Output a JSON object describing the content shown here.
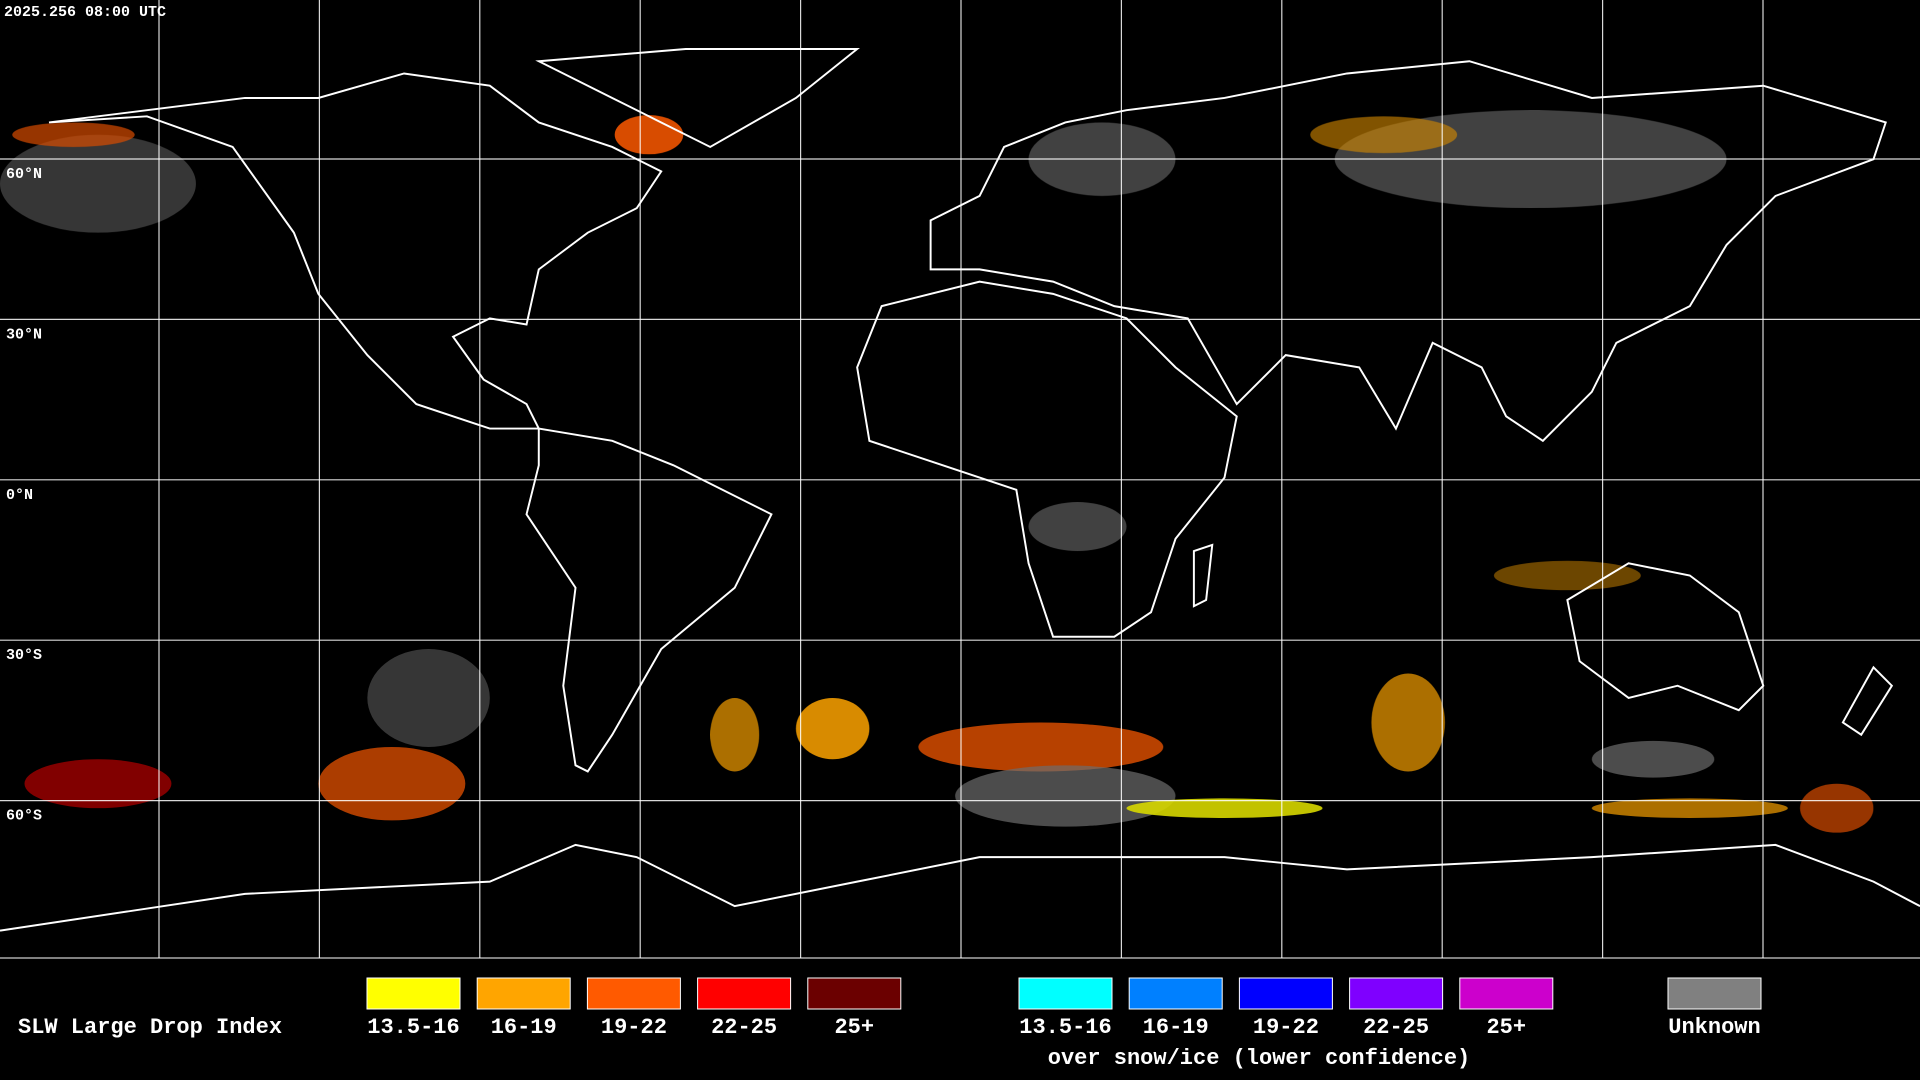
{
  "header": {
    "timestamp": "2025.256 08:00 UTC"
  },
  "map": {
    "latitude_labels": [
      "60°N",
      "30°N",
      "0°N",
      "30°S",
      "60°S"
    ]
  },
  "legend": {
    "title": "SLW Large Drop Index",
    "liquid": [
      {
        "label": "13.5-16",
        "color": "#ffff00"
      },
      {
        "label": "16-19",
        "color": "#ffa500"
      },
      {
        "label": "19-22",
        "color": "#ff5a00"
      },
      {
        "label": "22-25",
        "color": "#ff0000"
      },
      {
        "label": "25+",
        "color": "#6b0000"
      }
    ],
    "snow_ice": {
      "items": [
        {
          "label": "13.5-16",
          "color": "#00ffff"
        },
        {
          "label": "16-19",
          "color": "#0080ff"
        },
        {
          "label": "19-22",
          "color": "#0000ff"
        },
        {
          "label": "22-25",
          "color": "#7f00ff"
        },
        {
          "label": "25+",
          "color": "#cc00cc"
        }
      ],
      "caption": "over snow/ice (lower confidence)"
    },
    "unknown": {
      "label": "Unknown",
      "color": "#808080"
    }
  }
}
